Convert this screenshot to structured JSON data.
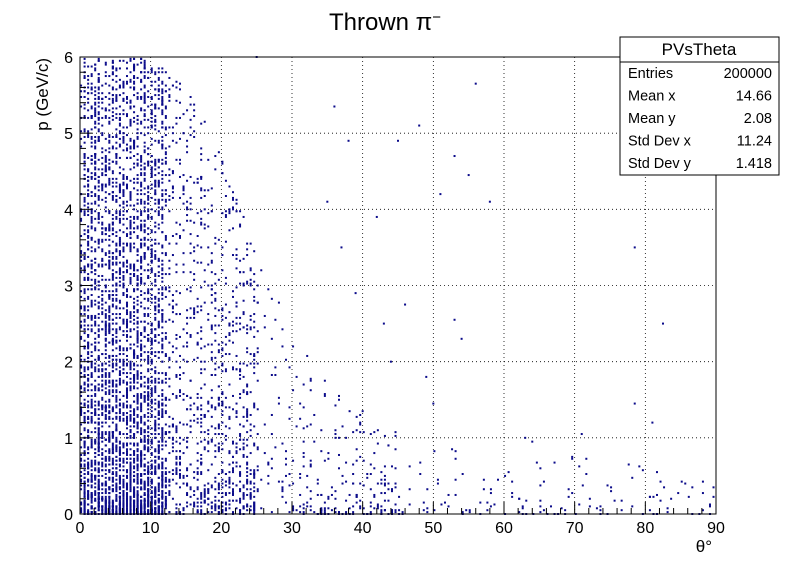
{
  "chart_data": {
    "type": "scatter",
    "title_base": "Thrown π",
    "title_sup": "−",
    "xlabel": "θ°",
    "ylabel": "p (GeV/c)",
    "xlim": [
      0,
      90
    ],
    "ylim": [
      0,
      6
    ],
    "x_ticks": [
      0,
      10,
      20,
      30,
      40,
      50,
      60,
      70,
      80,
      90
    ],
    "y_ticks": [
      0,
      1,
      2,
      3,
      4,
      5,
      6
    ],
    "grid": true,
    "marker_color": "#0b0b8a",
    "stats_box": {
      "title": "PVsTheta",
      "position": "top-right",
      "rows": [
        {
          "label": "Entries",
          "value": "200000"
        },
        {
          "label": "Mean x",
          "value": "14.66"
        },
        {
          "label": "Mean y",
          "value": "2.08"
        },
        {
          "label": "Std Dev x",
          "value": "11.24"
        },
        {
          "label": "Std Dev y",
          "value": "1.418"
        }
      ]
    },
    "outliers": [
      [
        25,
        6.0
      ],
      [
        36,
        5.35
      ],
      [
        38,
        4.9
      ],
      [
        48,
        5.1
      ],
      [
        51,
        4.2
      ],
      [
        53,
        4.7
      ],
      [
        56,
        5.65
      ],
      [
        58,
        4.1
      ],
      [
        42,
        3.9
      ],
      [
        35,
        4.1
      ],
      [
        37,
        3.5
      ],
      [
        45,
        4.9
      ],
      [
        55,
        4.45
      ],
      [
        78.5,
        3.5
      ],
      [
        82.5,
        2.5
      ],
      [
        53,
        2.55
      ],
      [
        54,
        2.3
      ],
      [
        44,
        2.0
      ],
      [
        49,
        1.8
      ],
      [
        40,
        1.35
      ],
      [
        50,
        1.45
      ],
      [
        78.5,
        1.45
      ],
      [
        81,
        1.2
      ],
      [
        63,
        1.0
      ],
      [
        71,
        1.05
      ],
      [
        64,
        0.95
      ],
      [
        43,
        2.5
      ],
      [
        46,
        2.75
      ],
      [
        39,
        2.9
      ]
    ],
    "envelope": [
      [
        0,
        6.0
      ],
      [
        5,
        6.0
      ],
      [
        10,
        6.0
      ],
      [
        15,
        5.6
      ],
      [
        20,
        4.8
      ],
      [
        25,
        3.4
      ],
      [
        30,
        2.4
      ],
      [
        35,
        1.7
      ],
      [
        40,
        1.3
      ],
      [
        45,
        1.1
      ],
      [
        50,
        0.95
      ],
      [
        55,
        0.9
      ],
      [
        60,
        0.85
      ],
      [
        65,
        0.8
      ],
      [
        70,
        0.75
      ],
      [
        75,
        0.7
      ],
      [
        80,
        0.65
      ],
      [
        85,
        0.6
      ],
      [
        90,
        0.6
      ]
    ]
  }
}
